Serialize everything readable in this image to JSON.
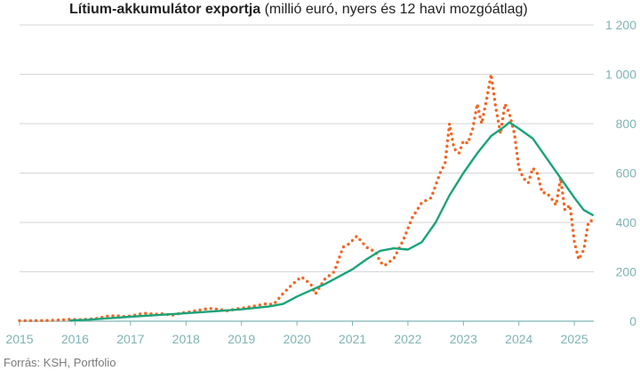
{
  "title_bold": "Lítium-akkumulátor exportja",
  "title_rest": " (millió euró, nyers és 12 havi mozgóátlag)",
  "source": "Forrás: KSH, Portfolio",
  "colors": {
    "raw": "#f26522",
    "ma": "#1aa37a",
    "grid": "#d6d6d6",
    "axis": "#7fb3b4"
  },
  "chart_data": {
    "type": "line",
    "title": "Lítium-akkumulátor exportja (millió euró, nyers és 12 havi mozgóátlag)",
    "xlabel": "",
    "ylabel": "",
    "xlim": [
      2015.0,
      2025.35
    ],
    "ylim": [
      0,
      1200
    ],
    "y_ticks": [
      0,
      200,
      400,
      600,
      800,
      1000,
      1200
    ],
    "y_tick_labels": [
      "0",
      "200",
      "400",
      "600",
      "800",
      "1 000",
      "1 200"
    ],
    "x_ticks": [
      2015,
      2016,
      2017,
      2018,
      2019,
      2020,
      2021,
      2022,
      2023,
      2024,
      2025
    ],
    "x_tick_labels": [
      "2015",
      "2016",
      "2017",
      "2018",
      "2019",
      "2020",
      "2021",
      "2022",
      "2023",
      "2024",
      "2025"
    ],
    "y_axis_side": "right",
    "grid": true,
    "series": [
      {
        "style": "dotted",
        "color": "#f26522",
        "points": [
          [
            2015.0,
            2
          ],
          [
            2015.25,
            2
          ],
          [
            2015.5,
            3
          ],
          [
            2015.75,
            5
          ],
          [
            2015.92,
            8
          ],
          [
            2016.08,
            6
          ],
          [
            2016.25,
            8
          ],
          [
            2016.42,
            12
          ],
          [
            2016.58,
            20
          ],
          [
            2016.75,
            22
          ],
          [
            2016.92,
            18
          ],
          [
            2017.08,
            25
          ],
          [
            2017.25,
            32
          ],
          [
            2017.42,
            28
          ],
          [
            2017.58,
            30
          ],
          [
            2017.75,
            24
          ],
          [
            2017.92,
            33
          ],
          [
            2018.08,
            38
          ],
          [
            2018.25,
            45
          ],
          [
            2018.42,
            52
          ],
          [
            2018.58,
            48
          ],
          [
            2018.75,
            42
          ],
          [
            2018.92,
            50
          ],
          [
            2019.08,
            55
          ],
          [
            2019.25,
            62
          ],
          [
            2019.42,
            70
          ],
          [
            2019.58,
            68
          ],
          [
            2019.75,
            112
          ],
          [
            2019.92,
            150
          ],
          [
            2020.08,
            180
          ],
          [
            2020.25,
            150
          ],
          [
            2020.33,
            110
          ],
          [
            2020.5,
            170
          ],
          [
            2020.67,
            200
          ],
          [
            2020.83,
            300
          ],
          [
            2020.92,
            310
          ],
          [
            2021.08,
            345
          ],
          [
            2021.25,
            300
          ],
          [
            2021.42,
            280
          ],
          [
            2021.5,
            240
          ],
          [
            2021.58,
            225
          ],
          [
            2021.75,
            255
          ],
          [
            2021.92,
            330
          ],
          [
            2022.08,
            420
          ],
          [
            2022.25,
            480
          ],
          [
            2022.42,
            500
          ],
          [
            2022.58,
            600
          ],
          [
            2022.67,
            640
          ],
          [
            2022.75,
            800
          ],
          [
            2022.83,
            700
          ],
          [
            2022.92,
            680
          ],
          [
            2023.0,
            730
          ],
          [
            2023.08,
            720
          ],
          [
            2023.17,
            780
          ],
          [
            2023.25,
            880
          ],
          [
            2023.33,
            800
          ],
          [
            2023.42,
            900
          ],
          [
            2023.5,
            1000
          ],
          [
            2023.58,
            870
          ],
          [
            2023.67,
            760
          ],
          [
            2023.75,
            880
          ],
          [
            2023.83,
            840
          ],
          [
            2023.92,
            760
          ],
          [
            2024.0,
            620
          ],
          [
            2024.08,
            580
          ],
          [
            2024.17,
            560
          ],
          [
            2024.25,
            620
          ],
          [
            2024.33,
            600
          ],
          [
            2024.42,
            520
          ],
          [
            2024.5,
            520
          ],
          [
            2024.58,
            500
          ],
          [
            2024.67,
            470
          ],
          [
            2024.75,
            580
          ],
          [
            2024.83,
            450
          ],
          [
            2024.92,
            470
          ],
          [
            2025.0,
            320
          ],
          [
            2025.08,
            250
          ],
          [
            2025.17,
            290
          ],
          [
            2025.25,
            400
          ],
          [
            2025.33,
            410
          ]
        ]
      },
      {
        "style": "solid",
        "color": "#1aa37a",
        "points": [
          [
            2015.92,
            3
          ],
          [
            2016.25,
            6
          ],
          [
            2016.5,
            10
          ],
          [
            2017.0,
            18
          ],
          [
            2017.5,
            25
          ],
          [
            2018.0,
            32
          ],
          [
            2018.5,
            40
          ],
          [
            2019.0,
            48
          ],
          [
            2019.5,
            60
          ],
          [
            2019.75,
            70
          ],
          [
            2020.0,
            100
          ],
          [
            2020.25,
            125
          ],
          [
            2020.5,
            150
          ],
          [
            2020.75,
            180
          ],
          [
            2021.0,
            210
          ],
          [
            2021.25,
            250
          ],
          [
            2021.5,
            285
          ],
          [
            2021.75,
            295
          ],
          [
            2022.0,
            290
          ],
          [
            2022.25,
            320
          ],
          [
            2022.5,
            400
          ],
          [
            2022.75,
            510
          ],
          [
            2023.0,
            600
          ],
          [
            2023.25,
            680
          ],
          [
            2023.5,
            750
          ],
          [
            2023.75,
            790
          ],
          [
            2023.83,
            805
          ],
          [
            2024.0,
            780
          ],
          [
            2024.25,
            740
          ],
          [
            2024.5,
            660
          ],
          [
            2024.75,
            580
          ],
          [
            2025.0,
            500
          ],
          [
            2025.17,
            450
          ],
          [
            2025.33,
            430
          ]
        ]
      }
    ]
  }
}
